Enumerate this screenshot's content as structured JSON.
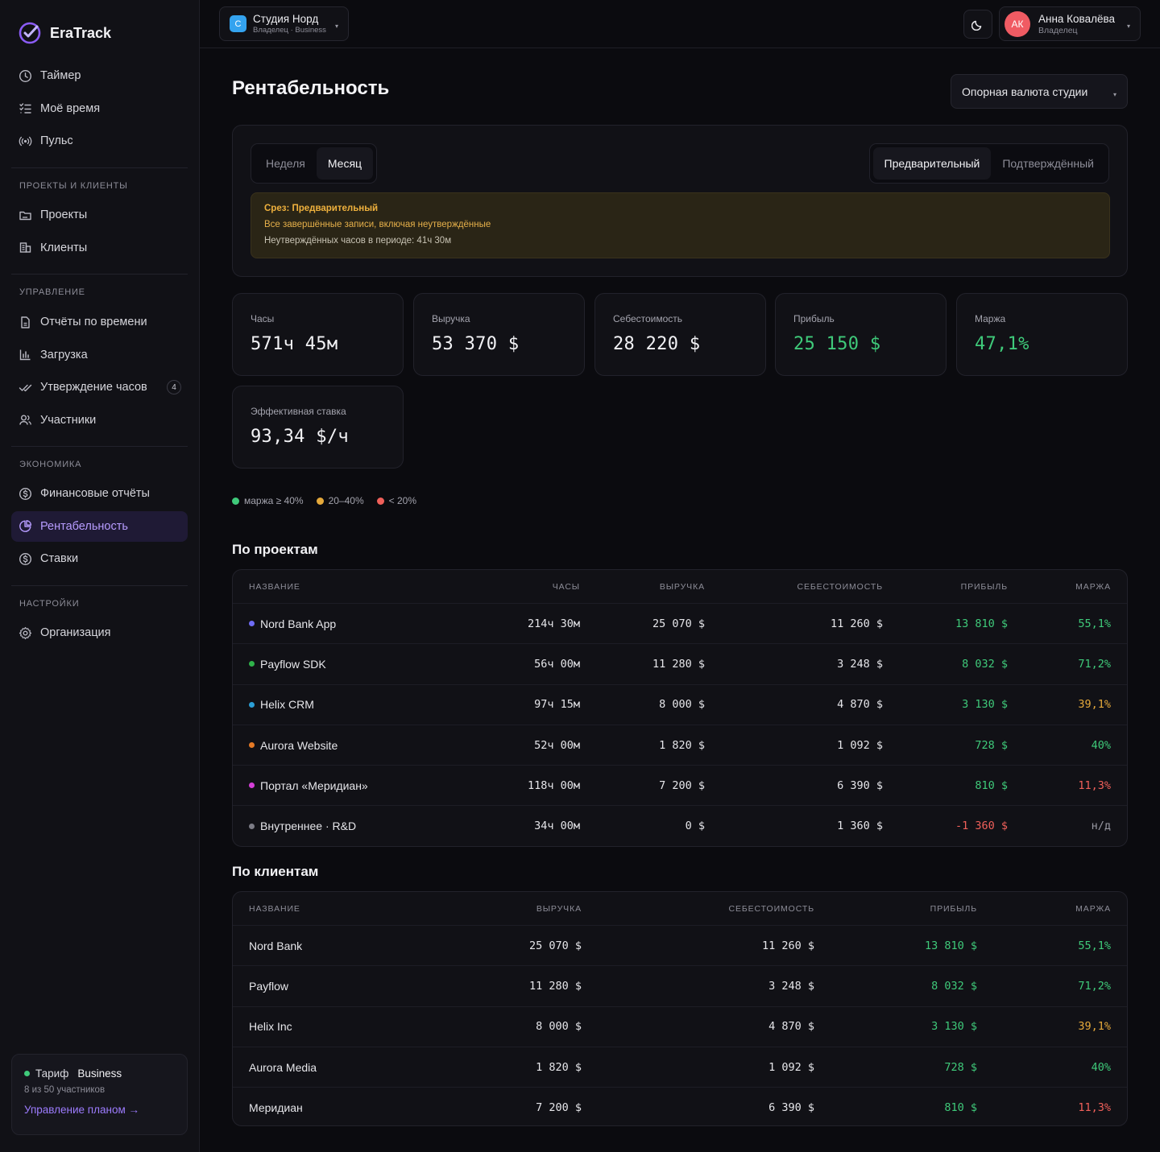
{
  "app": {
    "name": "EraTrack"
  },
  "sidebar": {
    "top_items": [
      {
        "label": "Таймер",
        "icon": "clock-icon"
      },
      {
        "label": "Моё время",
        "icon": "list-check-icon"
      },
      {
        "label": "Пульс",
        "icon": "broadcast-icon"
      }
    ],
    "sections": [
      {
        "title": "ПРОЕКТЫ И КЛИЕНТЫ",
        "items": [
          {
            "label": "Проекты",
            "icon": "folder-icon"
          },
          {
            "label": "Клиенты",
            "icon": "building-icon"
          }
        ]
      },
      {
        "title": "УПРАВЛЕНИЕ",
        "items": [
          {
            "label": "Отчёты по времени",
            "icon": "document-icon"
          },
          {
            "label": "Загрузка",
            "icon": "bar-chart-icon"
          },
          {
            "label": "Утверждение часов",
            "icon": "double-check-icon",
            "badge": "4"
          },
          {
            "label": "Участники",
            "icon": "users-icon"
          }
        ]
      },
      {
        "title": "ЭКОНОМИКА",
        "items": [
          {
            "label": "Финансовые отчёты",
            "icon": "dollar-circle-icon"
          },
          {
            "label": "Рентабельность",
            "icon": "pie-chart-icon",
            "active": true
          },
          {
            "label": "Ставки",
            "icon": "dollar-circle-icon"
          }
        ]
      },
      {
        "title": "НАСТРОЙКИ",
        "items": [
          {
            "label": "Организация",
            "icon": "gear-icon"
          }
        ]
      }
    ],
    "plan": {
      "prefix": "Тариф",
      "name": "Business",
      "members": "8 из 50 участников",
      "link": "Управление планом →"
    }
  },
  "header": {
    "studio": {
      "badge": "С",
      "name": "Студия Норд",
      "sub": "Владелец · Business"
    },
    "user": {
      "initials": "АК",
      "name": "Анна Ковалёва",
      "role": "Владелец"
    }
  },
  "page": {
    "title": "Рентабельность",
    "currency_select": "Опорная валюта студии",
    "period_tabs": [
      "Неделя",
      "Месяц"
    ],
    "period_selected": "Месяц",
    "status_tabs": [
      "Предварительный",
      "Подтверждённый"
    ],
    "status_selected": "Предварительный",
    "notice": {
      "title": "Срез: Предварительный",
      "line1": "Все завершённые записи, включая неутверждённые",
      "line2": "Неутверждённых часов в периоде: 41ч 30м"
    },
    "kpis": [
      {
        "label": "Часы",
        "value": "571ч 45м",
        "tone": ""
      },
      {
        "label": "Выручка",
        "value": "53 370 $",
        "tone": ""
      },
      {
        "label": "Себестоимость",
        "value": "28 220 $",
        "tone": ""
      },
      {
        "label": "Прибыль",
        "value": "25 150 $",
        "tone": "green"
      },
      {
        "label": "Маржа",
        "value": "47,1%",
        "tone": "green"
      },
      {
        "label": "Эффективная ставка",
        "value": "93,34 $/ч",
        "tone": ""
      }
    ],
    "legend": [
      {
        "label": "маржа ≥ 40%",
        "color": "#3fca7a"
      },
      {
        "label": "20–40%",
        "color": "#e5a93b"
      },
      {
        "label": "< 20%",
        "color": "#f0605a"
      }
    ]
  },
  "projects": {
    "title": "По проектам",
    "columns": [
      "НАЗВАНИЕ",
      "ЧАСЫ",
      "ВЫРУЧКА",
      "СЕБЕСТОИМОСТЬ",
      "ПРИБЫЛЬ",
      "МАРЖА"
    ],
    "rows": [
      {
        "name": "Nord Bank App",
        "dot": "#6f6cf5",
        "hours": "214ч 30м",
        "revenue": "25 070 $",
        "cost": "11 260 $",
        "profit": "13 810 $",
        "margin": "55,1%",
        "profit_tone": "g",
        "margin_tone": "g"
      },
      {
        "name": "Payflow SDK",
        "dot": "#2fb24a",
        "hours": "56ч 00м",
        "revenue": "11 280 $",
        "cost": "3 248 $",
        "profit": "8 032 $",
        "margin": "71,2%",
        "profit_tone": "g",
        "margin_tone": "g"
      },
      {
        "name": "Helix CRM",
        "dot": "#2b9fd6",
        "hours": "97ч 15м",
        "revenue": "8 000 $",
        "cost": "4 870 $",
        "profit": "3 130 $",
        "margin": "39,1%",
        "profit_tone": "g",
        "margin_tone": "y"
      },
      {
        "name": "Aurora Website",
        "dot": "#e57a26",
        "hours": "52ч 00м",
        "revenue": "1 820 $",
        "cost": "1 092 $",
        "profit": "728 $",
        "margin": "40%",
        "profit_tone": "g",
        "margin_tone": "g"
      },
      {
        "name": "Портал «Меридиан»",
        "dot": "#d53fd8",
        "hours": "118ч 00м",
        "revenue": "7 200 $",
        "cost": "6 390 $",
        "profit": "810 $",
        "margin": "11,3%",
        "profit_tone": "g",
        "margin_tone": "rd"
      },
      {
        "name": "Внутреннее · R&D",
        "dot": "#7c7c86",
        "hours": "34ч 00м",
        "revenue": "0 $",
        "cost": "1 360 $",
        "profit": "-1 360 $",
        "margin": "н/д",
        "profit_tone": "rd",
        "margin_tone": "gy"
      }
    ]
  },
  "clients": {
    "title": "По клиентам",
    "columns": [
      "НАЗВАНИЕ",
      "ВЫРУЧКА",
      "СЕБЕСТОИМОСТЬ",
      "ПРИБЫЛЬ",
      "МАРЖА"
    ],
    "rows": [
      {
        "name": "Nord Bank",
        "revenue": "25 070 $",
        "cost": "11 260 $",
        "profit": "13 810 $",
        "margin": "55,1%",
        "margin_tone": "g"
      },
      {
        "name": "Payflow",
        "revenue": "11 280 $",
        "cost": "3 248 $",
        "profit": "8 032 $",
        "margin": "71,2%",
        "margin_tone": "g"
      },
      {
        "name": "Helix Inc",
        "revenue": "8 000 $",
        "cost": "4 870 $",
        "profit": "3 130 $",
        "margin": "39,1%",
        "margin_tone": "y"
      },
      {
        "name": "Aurora Media",
        "revenue": "1 820 $",
        "cost": "1 092 $",
        "profit": "728 $",
        "margin": "40%",
        "margin_tone": "g"
      },
      {
        "name": "Меридиан",
        "revenue": "7 200 $",
        "cost": "6 390 $",
        "profit": "810 $",
        "margin": "11,3%",
        "margin_tone": "rd"
      }
    ]
  }
}
